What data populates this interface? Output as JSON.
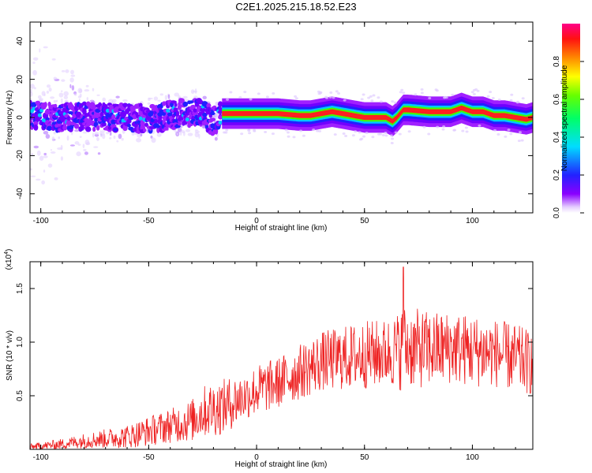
{
  "title": "C2E1.2025.215.18.52.E23",
  "chart_data": [
    {
      "type": "heatmap",
      "xlabel": "Height of straight line (km)",
      "ylabel": "Frequency (Hz)",
      "xlim": [
        -105,
        128
      ],
      "ylim": [
        -50,
        50
      ],
      "xticks": [
        -100,
        -50,
        0,
        50,
        100
      ],
      "xtick_labels": [
        "-100",
        "-50",
        "0",
        "50",
        "100"
      ],
      "yticks": [
        -40,
        -20,
        0,
        20,
        40
      ],
      "ytick_labels": [
        "-40",
        "-20",
        "0",
        "20",
        "40"
      ],
      "colorbar": {
        "label": "Normalized spectral amplitude",
        "range": [
          0,
          1
        ],
        "ticks": [
          0.0,
          0.2,
          0.4,
          0.6,
          0.8
        ],
        "tick_labels": [
          "0.0",
          "0.2",
          "0.4",
          "0.6",
          "0.8"
        ]
      },
      "ridge_frequency": {
        "x": [
          -100,
          -90,
          -80,
          -70,
          -60,
          -50,
          -45,
          -40,
          -30,
          -25,
          -20,
          -16,
          0,
          10,
          20,
          25,
          30,
          35,
          40,
          45,
          50,
          55,
          60,
          63,
          65,
          68,
          70,
          80,
          90,
          95,
          100,
          105,
          110,
          115,
          120,
          125,
          128
        ],
        "y": [
          1,
          0,
          1,
          0,
          0,
          -1,
          0,
          1,
          3,
          2,
          -2,
          2,
          2,
          2,
          1,
          1,
          2,
          3,
          2,
          1,
          0,
          0,
          0,
          -2,
          0,
          4,
          4,
          3,
          3,
          5,
          3,
          3,
          1,
          1,
          0,
          -1,
          0
        ]
      },
      "noise_region_x": [
        -105,
        -16
      ],
      "grid": false
    },
    {
      "type": "line",
      "xlabel": "Height of straight line (km)",
      "ylabel": "SNR (10 * v/v)",
      "scale_label": "(x10^4)",
      "xlim": [
        -105,
        128
      ],
      "ylim": [
        0,
        1.75
      ],
      "xticks": [
        -100,
        -50,
        0,
        50,
        100
      ],
      "xtick_labels": [
        "-100",
        "-50",
        "0",
        "50",
        "100"
      ],
      "yticks": [
        0.5,
        1.0,
        1.5
      ],
      "ytick_labels": [
        "0.5",
        "1.0",
        "1.5"
      ],
      "color": "#ee2222",
      "envelope": {
        "x": [
          -105,
          -90,
          -80,
          -70,
          -60,
          -50,
          -40,
          -30,
          -25,
          -20,
          -15,
          -10,
          -5,
          0,
          10,
          20,
          30,
          40,
          50,
          60,
          65,
          68,
          70,
          80,
          90,
          100,
          110,
          120,
          128
        ],
        "mean": [
          0.02,
          0.05,
          0.08,
          0.1,
          0.12,
          0.17,
          0.22,
          0.27,
          0.35,
          0.38,
          0.4,
          0.45,
          0.5,
          0.55,
          0.62,
          0.72,
          0.82,
          0.85,
          0.88,
          0.9,
          0.92,
          0.95,
          0.95,
          0.93,
          0.95,
          0.92,
          0.9,
          0.85,
          0.8
        ],
        "spread": [
          0.03,
          0.05,
          0.07,
          0.09,
          0.11,
          0.14,
          0.16,
          0.2,
          0.24,
          0.26,
          0.26,
          0.24,
          0.22,
          0.24,
          0.24,
          0.26,
          0.28,
          0.3,
          0.32,
          0.32,
          0.35,
          0.42,
          0.38,
          0.36,
          0.34,
          0.34,
          0.32,
          0.32,
          0.3
        ]
      },
      "peak": {
        "x": 68,
        "y": 1.7
      },
      "grid": false
    }
  ]
}
